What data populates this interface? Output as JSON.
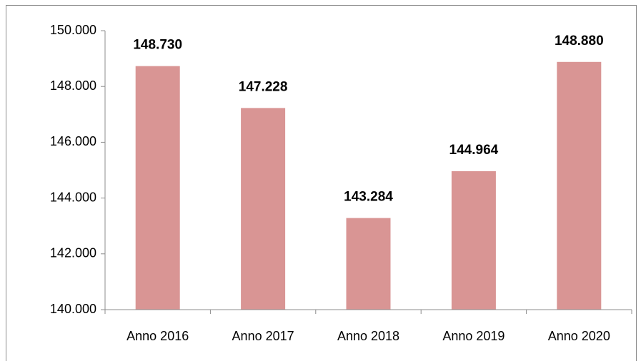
{
  "chart_data": {
    "type": "bar",
    "categories": [
      "Anno 2016",
      "Anno 2017",
      "Anno 2018",
      "Anno 2019",
      "Anno 2020"
    ],
    "values": [
      148730,
      147228,
      143284,
      144964,
      148880
    ],
    "value_labels": [
      "148.730",
      "147.228",
      "143.284",
      "144.964",
      "148.880"
    ],
    "color": "#d99594",
    "ylim": [
      140000,
      150000
    ],
    "yticks": [
      {
        "value": 140000,
        "label": "140.000"
      },
      {
        "value": 142000,
        "label": "142.000"
      },
      {
        "value": 144000,
        "label": "144.000"
      },
      {
        "value": 146000,
        "label": "146.000"
      },
      {
        "value": 148000,
        "label": "148.000"
      },
      {
        "value": 150000,
        "label": "150.000"
      }
    ],
    "grid": false
  }
}
